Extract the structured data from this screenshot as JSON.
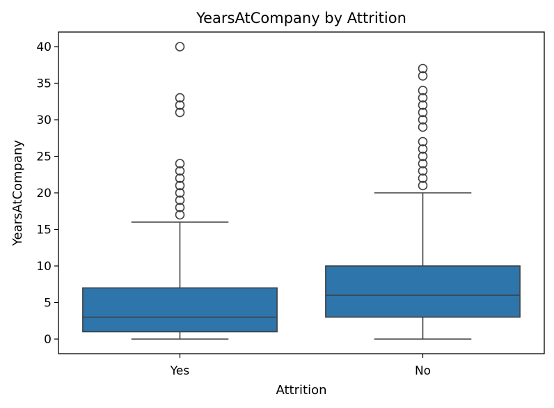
{
  "chart_data": {
    "type": "box",
    "title": "YearsAtCompany by Attrition",
    "xlabel": "Attrition",
    "ylabel": "YearsAtCompany",
    "categories": [
      "Yes",
      "No"
    ],
    "ylim": [
      -2,
      42
    ],
    "yticks": [
      0,
      5,
      10,
      15,
      20,
      25,
      30,
      35,
      40
    ],
    "grid": false,
    "color": "#2e75ab",
    "line_color": "#3f3f3f",
    "boxes": [
      {
        "category": "Yes",
        "whisker_low": 0,
        "q1": 1,
        "median": 3,
        "q3": 7,
        "whisker_high": 16,
        "outliers": [
          17,
          18,
          19,
          20,
          21,
          22,
          23,
          24,
          31,
          32,
          33,
          40
        ]
      },
      {
        "category": "No",
        "whisker_low": 0,
        "q1": 3,
        "median": 6,
        "q3": 10,
        "whisker_high": 20,
        "outliers": [
          21,
          22,
          23,
          24,
          25,
          26,
          27,
          29,
          30,
          31,
          32,
          33,
          34,
          36,
          37
        ]
      }
    ]
  }
}
